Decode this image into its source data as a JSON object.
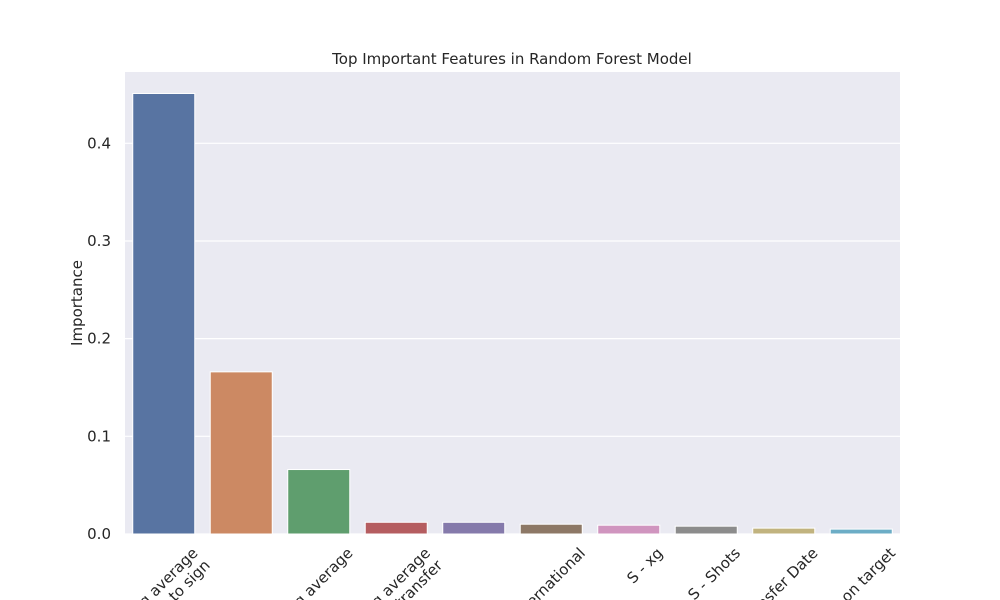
{
  "chart_data": {
    "type": "bar",
    "title": "Top Important Features in Random Forest Model",
    "xlabel": "",
    "ylabel": "Importance",
    "ylim": [
      0,
      0.473
    ],
    "yticks": [
      "0.0",
      "0.1",
      "0.2",
      "0.3",
      "0.4"
    ],
    "grid": true,
    "categories": [
      "g average",
      "free to sign",
      "g average",
      "g average",
      "e transfer",
      "nternational",
      "S - xg",
      "S - Shots",
      "nsfer Date",
      "on target"
    ],
    "category_label_lines": [
      [
        "g average",
        "free to sign"
      ],
      [],
      [
        "g average"
      ],
      [
        "g average",
        "e transfer"
      ],
      [],
      [
        "nternational"
      ],
      [
        "S - xg"
      ],
      [
        "S - Shots"
      ],
      [
        "nsfer Date"
      ],
      [
        "on target"
      ]
    ],
    "values": [
      0.451,
      0.166,
      0.066,
      0.012,
      0.012,
      0.01,
      0.009,
      0.008,
      0.006,
      0.005
    ],
    "colors": [
      "#5874a2",
      "#cc8963",
      "#5f9e6e",
      "#b55d60",
      "#857aab",
      "#8d7866",
      "#d095bf",
      "#8c8c8c",
      "#c1b37f",
      "#6cadc6"
    ]
  }
}
